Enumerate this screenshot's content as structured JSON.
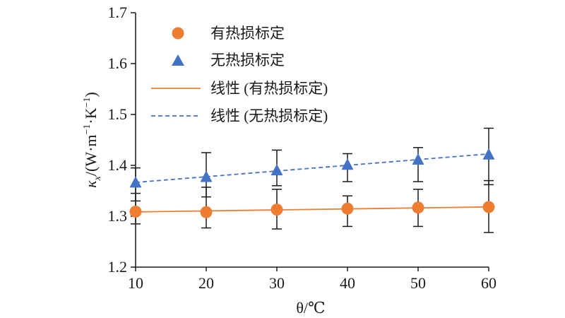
{
  "chart_data": {
    "type": "scatter",
    "x": [
      10,
      20,
      30,
      40,
      50,
      60
    ],
    "xlabel": "θ/℃",
    "ylabel": "κx/(W·m−1·K−1)",
    "ylabel_parts": {
      "kappa": "κ",
      "sub": "x",
      "main": "/(W·m",
      "sup1": "−1",
      "mid": "·K",
      "sup2": "−1",
      "close": ")"
    },
    "xlim": [
      10,
      60
    ],
    "ylim": [
      1.2,
      1.7
    ],
    "x_ticks": [
      "10",
      "20",
      "30",
      "40",
      "50",
      "60"
    ],
    "y_ticks": [
      "1.2",
      "1.3",
      "1.4",
      "1.5",
      "1.6",
      "1.7"
    ],
    "grid": false,
    "legend_position": "top-left",
    "series": [
      {
        "name": "有热损标定",
        "marker": "circle",
        "color": "#ED7D31",
        "values": [
          1.309,
          1.308,
          1.313,
          1.315,
          1.317,
          1.318
        ],
        "error_low": [
          1.285,
          1.277,
          1.275,
          1.28,
          1.28,
          1.268
        ],
        "error_high": [
          1.345,
          1.357,
          1.353,
          1.34,
          1.353,
          1.37
        ]
      },
      {
        "name": "无热损标定",
        "marker": "triangle",
        "color": "#4472C4",
        "values": [
          1.367,
          1.378,
          1.391,
          1.402,
          1.412,
          1.422
        ],
        "error_low": [
          1.33,
          1.338,
          1.36,
          1.368,
          1.368,
          1.362
        ],
        "error_high": [
          1.395,
          1.425,
          1.43,
          1.423,
          1.435,
          1.473
        ]
      },
      {
        "name": "线性 (有热损标定)",
        "type": "trendline",
        "style": "solid",
        "color": "#ED7D31",
        "endpoints": [
          [
            10,
            1.3085
          ],
          [
            60,
            1.3183
          ]
        ]
      },
      {
        "name": "线性 (无热损标定)",
        "type": "trendline",
        "style": "dashed",
        "color": "#4472C4",
        "endpoints": [
          [
            10,
            1.3665
          ],
          [
            60,
            1.4225
          ]
        ]
      }
    ]
  }
}
